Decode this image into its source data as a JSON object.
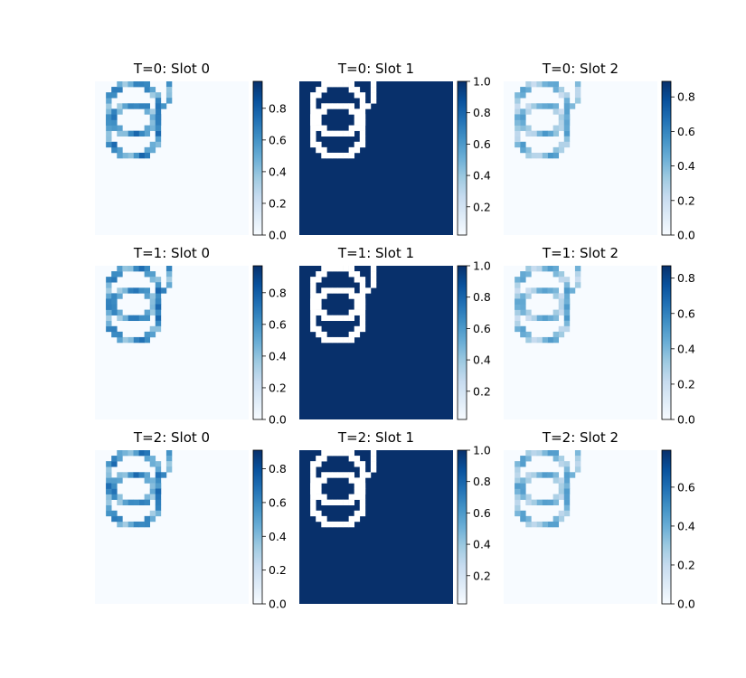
{
  "chart_data": [
    {
      "type": "heatmap",
      "title": "T=0: Slot 0",
      "background": "low",
      "ring_intensity": [
        0.85,
        0.55,
        0.2
      ],
      "colorbar": {
        "ticks": [
          0.0,
          0.2,
          0.4,
          0.6,
          0.8
        ],
        "tick_labels": [
          "0.0",
          "0.2",
          "0.4",
          "0.6",
          "0.8"
        ],
        "range": [
          0,
          0.97
        ]
      }
    },
    {
      "type": "heatmap",
      "title": "T=0: Slot 1",
      "background": "high",
      "ring_intensity": [
        0.0
      ],
      "colorbar": {
        "ticks": [
          0.2,
          0.4,
          0.6,
          0.8,
          1.0
        ],
        "tick_labels": [
          "0.2",
          "0.4",
          "0.6",
          "0.8",
          "1.0"
        ],
        "range": [
          0.02,
          1.0
        ]
      }
    },
    {
      "type": "heatmap",
      "title": "T=0: Slot 2",
      "background": "low",
      "ring_intensity": [
        0.5,
        0.3,
        0.95
      ],
      "colorbar": {
        "ticks": [
          0.0,
          0.2,
          0.4,
          0.6,
          0.8
        ],
        "tick_labels": [
          "0.0",
          "0.2",
          "0.4",
          "0.6",
          "0.8"
        ],
        "range": [
          0,
          0.89
        ]
      }
    },
    {
      "type": "heatmap",
      "title": "T=1: Slot 0",
      "background": "low",
      "ring_intensity": [
        0.85,
        0.55,
        0.2
      ],
      "colorbar": {
        "ticks": [
          0.0,
          0.2,
          0.4,
          0.6,
          0.8
        ],
        "tick_labels": [
          "0.0",
          "0.2",
          "0.4",
          "0.6",
          "0.8"
        ],
        "range": [
          0,
          0.97
        ]
      }
    },
    {
      "type": "heatmap",
      "title": "T=1: Slot 1",
      "background": "high",
      "ring_intensity": [
        0.0
      ],
      "colorbar": {
        "ticks": [
          0.2,
          0.4,
          0.6,
          0.8,
          1.0
        ],
        "tick_labels": [
          "0.2",
          "0.4",
          "0.6",
          "0.8",
          "1.0"
        ],
        "range": [
          0.02,
          1.0
        ]
      }
    },
    {
      "type": "heatmap",
      "title": "T=1: Slot 2",
      "background": "low",
      "ring_intensity": [
        0.5,
        0.3,
        0.95
      ],
      "colorbar": {
        "ticks": [
          0.0,
          0.2,
          0.4,
          0.6,
          0.8
        ],
        "tick_labels": [
          "0.0",
          "0.2",
          "0.4",
          "0.6",
          "0.8"
        ],
        "range": [
          0,
          0.87
        ]
      }
    },
    {
      "type": "heatmap",
      "title": "T=2: Slot 0",
      "background": "low",
      "ring_intensity": [
        0.8,
        0.6,
        0.3
      ],
      "colorbar": {
        "ticks": [
          0.0,
          0.2,
          0.4,
          0.6,
          0.8
        ],
        "tick_labels": [
          "0.0",
          "0.2",
          "0.4",
          "0.6",
          "0.8"
        ],
        "range": [
          0,
          0.91
        ]
      }
    },
    {
      "type": "heatmap",
      "title": "T=2: Slot 1",
      "background": "high",
      "ring_intensity": [
        0.0
      ],
      "colorbar": {
        "ticks": [
          0.2,
          0.4,
          0.6,
          0.8,
          1.0
        ],
        "tick_labels": [
          "0.2",
          "0.4",
          "0.6",
          "0.8",
          "1.0"
        ],
        "range": [
          0.02,
          1.0
        ]
      }
    },
    {
      "type": "heatmap",
      "title": "T=2: Slot 2",
      "background": "low",
      "ring_intensity": [
        0.55,
        0.35,
        0.7
      ],
      "colorbar": {
        "ticks": [
          0.0,
          0.2,
          0.4,
          0.6
        ],
        "tick_labels": [
          "0.0",
          "0.2",
          "0.4",
          "0.6"
        ],
        "range": [
          0,
          0.79
        ]
      }
    }
  ],
  "colormap": {
    "name": "Blues",
    "low": "#f7fbff",
    "high": "#08306b"
  }
}
